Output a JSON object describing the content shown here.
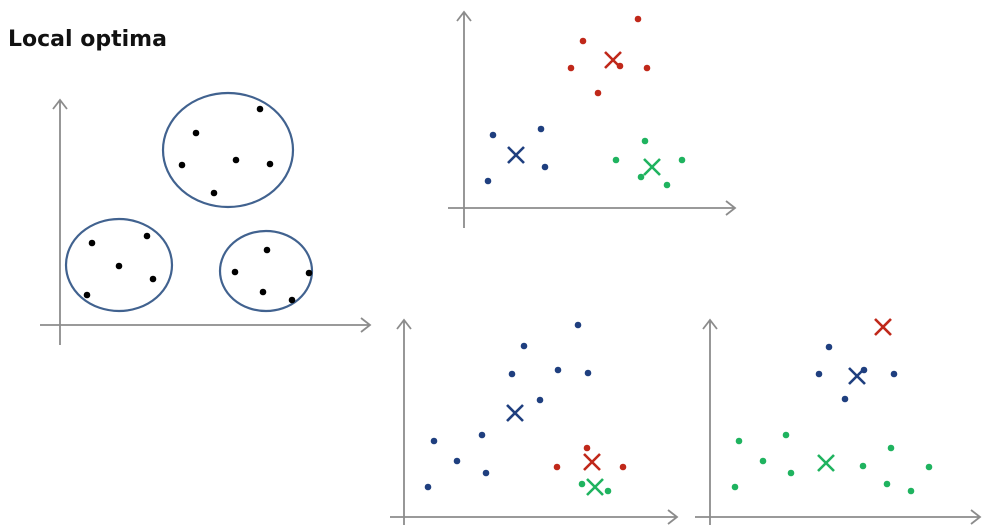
{
  "title": "Local optima"
}
